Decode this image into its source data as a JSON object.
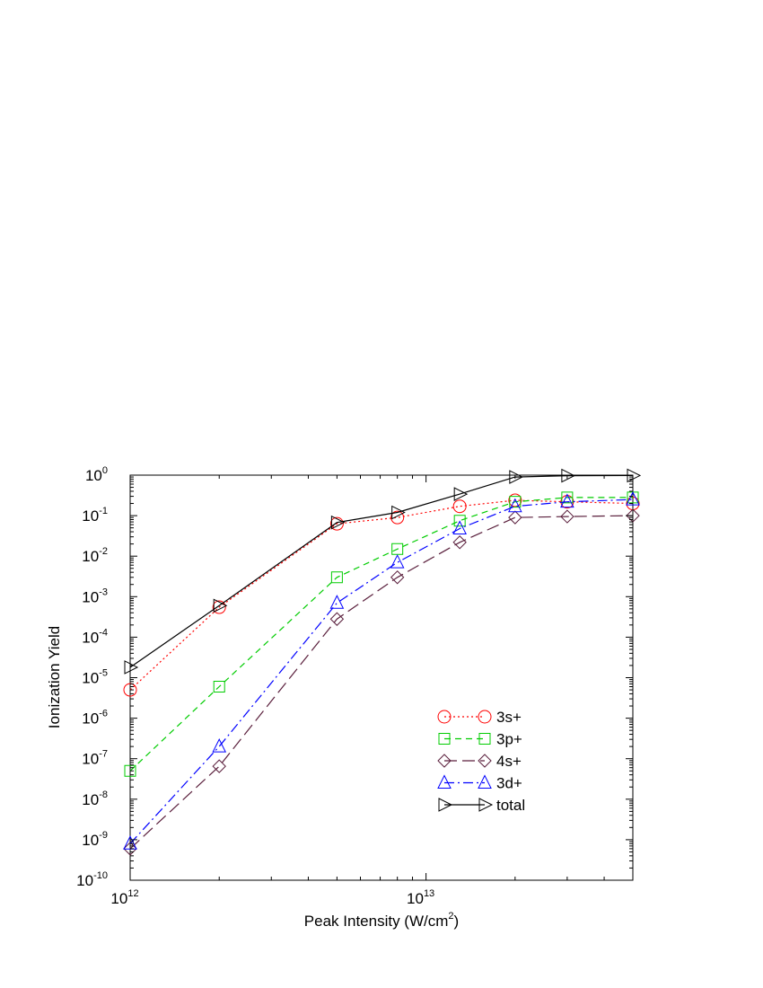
{
  "chart_data": {
    "type": "line",
    "xscale": "log",
    "yscale": "log",
    "xlim": [
      1000000000000.0,
      50000000000000.0
    ],
    "ylim": [
      1e-10,
      1
    ],
    "grid": false,
    "legend_position": "lower-right",
    "xlabel": {
      "main": "Peak Intensity (W/cm",
      "sup": "2",
      "tail": ")"
    },
    "ylabel": "Ionization Yield",
    "x_ticks": [
      {
        "value": 1000000000000.0,
        "base": "10",
        "exp": "12"
      },
      {
        "value": 10000000000000.0,
        "base": "10",
        "exp": "13"
      }
    ],
    "y_ticks": [
      {
        "value": 1,
        "base": "10",
        "exp": "0"
      },
      {
        "value": 0.1,
        "base": "10",
        "exp": "-1"
      },
      {
        "value": 0.01,
        "base": "10",
        "exp": "-2"
      },
      {
        "value": 0.001,
        "base": "10",
        "exp": "-3"
      },
      {
        "value": 0.0001,
        "base": "10",
        "exp": "-4"
      },
      {
        "value": 1e-05,
        "base": "10",
        "exp": "-5"
      },
      {
        "value": 1e-06,
        "base": "10",
        "exp": "-6"
      },
      {
        "value": 1e-07,
        "base": "10",
        "exp": "-7"
      },
      {
        "value": 1e-08,
        "base": "10",
        "exp": "-8"
      },
      {
        "value": 1e-09,
        "base": "10",
        "exp": "-9"
      },
      {
        "value": 1e-10,
        "base": "10",
        "exp": "-10"
      }
    ],
    "x": [
      1000000000000.0,
      2000000000000.0,
      5000000000000.0,
      8000000000000.0,
      13000000000000.0,
      20000000000000.0,
      30000000000000.0,
      50000000000000.0
    ],
    "series": [
      {
        "name": "3s+",
        "color": "#ff0000",
        "marker": "circle",
        "dash": "2,3",
        "values": [
          5e-06,
          0.00055,
          0.063,
          0.09,
          0.17,
          0.24,
          0.22,
          0.2
        ]
      },
      {
        "name": "3p+",
        "color": "#00cc00",
        "marker": "square",
        "dash": "7,5",
        "values": [
          5e-08,
          6e-06,
          0.003,
          0.015,
          0.075,
          0.22,
          0.28,
          0.28
        ]
      },
      {
        "name": "4s+",
        "color": "#5a1f3c",
        "marker": "diamond",
        "dash": "14,6",
        "values": [
          6e-10,
          6.5e-08,
          0.00028,
          0.003,
          0.022,
          0.09,
          0.095,
          0.1
        ]
      },
      {
        "name": "3d+",
        "color": "#0000ff",
        "marker": "triangle-up",
        "dash": "11,4,2,4",
        "values": [
          8e-10,
          2e-07,
          0.0007,
          0.007,
          0.048,
          0.17,
          0.22,
          0.25
        ]
      },
      {
        "name": "total",
        "color": "#000000",
        "marker": "triangle-right",
        "dash": "",
        "values": [
          1.8e-05,
          0.0006,
          0.068,
          0.12,
          0.34,
          0.9,
          0.97,
          0.98
        ]
      }
    ]
  }
}
